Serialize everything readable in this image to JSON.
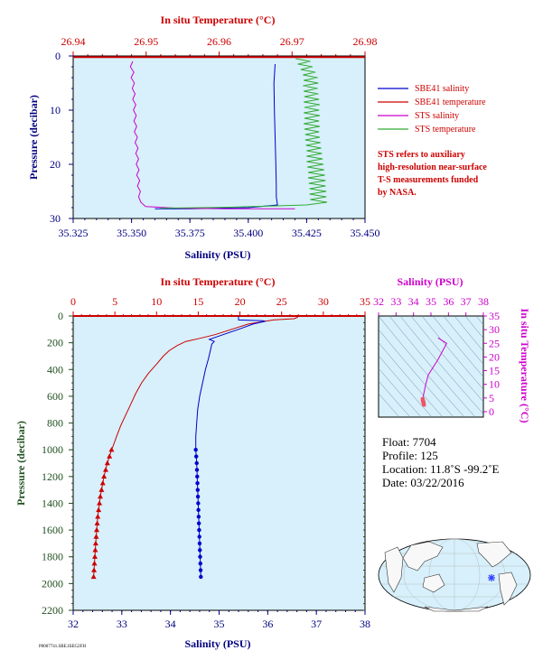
{
  "chart_data": [
    {
      "type": "line",
      "id": "top_profile",
      "x_top_label": "In situ Temperature (°C)",
      "x_top_ticks": [
        "26.94",
        "26.95",
        "26.96",
        "26.97",
        "26.98"
      ],
      "x_top_range": [
        26.94,
        26.98
      ],
      "x_bottom_label": "Salinity (PSU)",
      "x_bottom_ticks": [
        "35.325",
        "35.350",
        "35.375",
        "35.400",
        "35.425",
        "35.450"
      ],
      "x_bottom_range": [
        35.325,
        35.45
      ],
      "ylabel": "Pressure (decibar)",
      "y_ticks": [
        "0",
        "10",
        "20",
        "30"
      ],
      "ylim": [
        30,
        0
      ],
      "legend": [
        "SBE41 salinity",
        "SBE41 temperature",
        "STS salinity",
        "STS temperature"
      ],
      "legend_colors": [
        "#0000cc",
        "#cc0000",
        "#cc00cc",
        "#33aa33"
      ],
      "series": [
        {
          "name": "SBE41 salinity",
          "axis": "bottom",
          "color": "#0000cc",
          "points": [
            [
              35.4115,
              1.5
            ],
            [
              35.411,
              5
            ],
            [
              35.4112,
              10
            ],
            [
              35.4115,
              15
            ],
            [
              35.4118,
              20
            ],
            [
              35.412,
              24
            ],
            [
              35.412,
              26
            ],
            [
              35.4125,
              27.5
            ],
            [
              35.4,
              28
            ],
            [
              35.375,
              28.2
            ],
            [
              35.36,
              28.2
            ]
          ]
        },
        {
          "name": "SBE41 temperature",
          "axis": "top",
          "color": "#cc0000",
          "points": [
            [
              26.94,
              0.2
            ],
            [
              26.98,
              0.2
            ]
          ]
        },
        {
          "name": "STS salinity",
          "axis": "bottom",
          "color": "#cc00cc",
          "points": [
            [
              35.3505,
              1
            ],
            [
              35.3495,
              2
            ],
            [
              35.351,
              3
            ],
            [
              35.3498,
              4
            ],
            [
              35.3512,
              5
            ],
            [
              35.3503,
              6
            ],
            [
              35.3515,
              7
            ],
            [
              35.3505,
              8
            ],
            [
              35.3518,
              9
            ],
            [
              35.3508,
              10
            ],
            [
              35.352,
              11
            ],
            [
              35.351,
              12
            ],
            [
              35.3522,
              13
            ],
            [
              35.3512,
              14
            ],
            [
              35.3525,
              15
            ],
            [
              35.3515,
              16
            ],
            [
              35.3528,
              17
            ],
            [
              35.3518,
              18
            ],
            [
              35.353,
              19
            ],
            [
              35.352,
              20
            ],
            [
              35.3532,
              21
            ],
            [
              35.3522,
              22
            ],
            [
              35.3535,
              23
            ],
            [
              35.3525,
              24
            ],
            [
              35.3538,
              25
            ],
            [
              35.353,
              26
            ],
            [
              35.354,
              27
            ],
            [
              35.356,
              27.8
            ],
            [
              35.37,
              28.1
            ],
            [
              35.39,
              28.2
            ],
            [
              35.42,
              28.2
            ]
          ]
        },
        {
          "name": "STS temperature",
          "axis": "top",
          "color": "#33aa33",
          "points": [
            [
              26.9705,
              0.5
            ],
            [
              26.9725,
              1
            ],
            [
              26.9708,
              1.5
            ],
            [
              26.9728,
              2
            ],
            [
              26.9712,
              2.5
            ],
            [
              26.9732,
              3
            ],
            [
              26.9715,
              3.5
            ],
            [
              26.9735,
              4
            ],
            [
              26.9716,
              4.5
            ],
            [
              26.9736,
              5
            ],
            [
              26.9715,
              5.5
            ],
            [
              26.9735,
              6
            ],
            [
              26.9716,
              6.5
            ],
            [
              26.9736,
              7
            ],
            [
              26.9717,
              7.5
            ],
            [
              26.9737,
              8
            ],
            [
              26.9716,
              8.5
            ],
            [
              26.9738,
              9
            ],
            [
              26.9717,
              9.5
            ],
            [
              26.9737,
              10
            ],
            [
              26.9716,
              10.5
            ],
            [
              26.9738,
              11
            ],
            [
              26.9717,
              11.5
            ],
            [
              26.9737,
              12
            ],
            [
              26.9716,
              12.5
            ],
            [
              26.9738,
              13
            ],
            [
              26.9717,
              13.5
            ],
            [
              26.9737,
              14
            ],
            [
              26.9718,
              14.5
            ],
            [
              26.9738,
              15
            ],
            [
              26.9718,
              15.5
            ],
            [
              26.9739,
              16
            ],
            [
              26.9719,
              16.5
            ],
            [
              26.974,
              17
            ],
            [
              26.972,
              17.5
            ],
            [
              26.9741,
              18
            ],
            [
              26.972,
              18.5
            ],
            [
              26.9742,
              19
            ],
            [
              26.972,
              19.5
            ],
            [
              26.9743,
              20
            ],
            [
              26.9721,
              20.5
            ],
            [
              26.9744,
              21
            ],
            [
              26.9722,
              21.5
            ],
            [
              26.9745,
              22
            ],
            [
              26.9722,
              22.5
            ],
            [
              26.9746,
              23
            ],
            [
              26.9723,
              23.5
            ],
            [
              26.9746,
              24
            ],
            [
              26.9724,
              24.5
            ],
            [
              26.9747,
              25
            ],
            [
              26.9724,
              25.5
            ],
            [
              26.9747,
              26
            ],
            [
              26.9725,
              26.5
            ],
            [
              26.9748,
              27
            ],
            [
              26.972,
              27.5
            ],
            [
              26.962,
              27.9
            ],
            [
              26.952,
              28.1
            ]
          ]
        }
      ]
    },
    {
      "type": "line",
      "id": "bottom_profile",
      "x_top_label": "In situ Temperature (°C)",
      "x_top_ticks": [
        "0",
        "5",
        "10",
        "15",
        "20",
        "25",
        "30",
        "35"
      ],
      "x_top_range": [
        0,
        35
      ],
      "x_bottom_label": "Salinity (PSU)",
      "x_bottom_ticks": [
        "32",
        "33",
        "34",
        "35",
        "36",
        "37",
        "38"
      ],
      "x_bottom_range": [
        32,
        38
      ],
      "ylabel": "Pressure (decibar)",
      "y_ticks": [
        "0",
        "200",
        "400",
        "600",
        "800",
        "1000",
        "1200",
        "1400",
        "1600",
        "1800",
        "2000",
        "2200"
      ],
      "ylim": [
        2200,
        0
      ],
      "series": [
        {
          "name": "temperature",
          "axis": "top",
          "color": "#cc0000",
          "line_points": [
            [
              27.0,
              0
            ],
            [
              26.9,
              10
            ],
            [
              26.5,
              20
            ],
            [
              24,
              30
            ],
            [
              21,
              60
            ],
            [
              19,
              100
            ],
            [
              17,
              140
            ],
            [
              15,
              170
            ],
            [
              13.5,
              190
            ],
            [
              12.5,
              220
            ],
            [
              11.5,
              260
            ],
            [
              10.8,
              300
            ],
            [
              10,
              360
            ],
            [
              9,
              430
            ],
            [
              8.2,
              500
            ],
            [
              7.5,
              580
            ],
            [
              6.9,
              660
            ],
            [
              6.3,
              740
            ],
            [
              5.7,
              820
            ],
            [
              5.2,
              900
            ],
            [
              4.8,
              970
            ],
            [
              4.6,
              1000
            ]
          ],
          "markers": [
            [
              4.6,
              1000
            ],
            [
              4.35,
              1050
            ],
            [
              4.1,
              1100
            ],
            [
              3.9,
              1150
            ],
            [
              3.7,
              1200
            ],
            [
              3.55,
              1250
            ],
            [
              3.4,
              1300
            ],
            [
              3.25,
              1350
            ],
            [
              3.15,
              1400
            ],
            [
              3.05,
              1450
            ],
            [
              2.95,
              1500
            ],
            [
              2.88,
              1550
            ],
            [
              2.82,
              1600
            ],
            [
              2.76,
              1650
            ],
            [
              2.7,
              1700
            ],
            [
              2.65,
              1750
            ],
            [
              2.6,
              1800
            ],
            [
              2.55,
              1850
            ],
            [
              2.5,
              1900
            ],
            [
              2.45,
              1950
            ]
          ]
        },
        {
          "name": "salinity",
          "axis": "bottom",
          "color": "#0000cc",
          "line_points": [
            [
              35.4,
              0
            ],
            [
              35.4,
              10
            ],
            [
              35.4,
              30
            ],
            [
              35.9,
              35
            ],
            [
              35.95,
              40
            ],
            [
              35.7,
              60
            ],
            [
              35.4,
              100
            ],
            [
              35.0,
              150
            ],
            [
              34.8,
              175
            ],
            [
              34.9,
              190
            ],
            [
              34.85,
              210
            ],
            [
              34.82,
              260
            ],
            [
              34.78,
              320
            ],
            [
              34.72,
              400
            ],
            [
              34.66,
              500
            ],
            [
              34.6,
              600
            ],
            [
              34.56,
              700
            ],
            [
              34.54,
              800
            ],
            [
              34.52,
              900
            ],
            [
              34.52,
              1000
            ]
          ],
          "markers": [
            [
              34.52,
              1000
            ],
            [
              34.53,
              1050
            ],
            [
              34.54,
              1100
            ],
            [
              34.545,
              1150
            ],
            [
              34.55,
              1200
            ],
            [
              34.555,
              1250
            ],
            [
              34.56,
              1300
            ],
            [
              34.565,
              1350
            ],
            [
              34.57,
              1400
            ],
            [
              34.575,
              1450
            ],
            [
              34.58,
              1500
            ],
            [
              34.585,
              1550
            ],
            [
              34.59,
              1600
            ],
            [
              34.595,
              1650
            ],
            [
              34.6,
              1700
            ],
            [
              34.605,
              1750
            ],
            [
              34.61,
              1800
            ],
            [
              34.615,
              1850
            ],
            [
              34.62,
              1900
            ],
            [
              34.625,
              1950
            ]
          ]
        }
      ]
    },
    {
      "type": "scatter",
      "id": "ts_diagram",
      "x_top_label": "Salinity (PSU)",
      "x_top_ticks": [
        "32",
        "33",
        "34",
        "35",
        "36",
        "37",
        "38"
      ],
      "x_range": [
        32,
        38
      ],
      "y_right_label": "In situ Temperature (°C)",
      "y_right_ticks": [
        "0",
        "5",
        "10",
        "15",
        "20",
        "25",
        "30",
        "35"
      ],
      "y_range": [
        -2,
        35
      ],
      "color": "#cc00cc",
      "points": [
        [
          35.4,
          27
        ],
        [
          35.9,
          25
        ],
        [
          35.4,
          19
        ],
        [
          34.85,
          13.5
        ],
        [
          34.7,
          10
        ],
        [
          34.6,
          7
        ],
        [
          34.52,
          4.6
        ],
        [
          34.56,
          3.5
        ],
        [
          34.6,
          2.5
        ]
      ]
    }
  ],
  "legend_note": "STS refers to auxiliary high-resolution near-surface T-S measurements funded by NASA.",
  "legend_note_lines": [
    "STS refers to auxiliary",
    "high-resolution near-surface",
    "T-S measurements funded",
    "by NASA."
  ],
  "float_info": {
    "float": "Float:  7704",
    "profile": "Profile:  125",
    "location": "Location:  11.8˚S  -99.2˚E",
    "date": "Date:  03/22/2016"
  },
  "footer_code": "P0007741.SBE.ISEG2FH",
  "colors": {
    "plot_bg": "#d7f0fb",
    "temperature": "#cc0000",
    "salinity": "#0000cc",
    "sts_salinity": "#cc00cc",
    "sts_temperature": "#33aa33",
    "pressure_axis": "#205020",
    "ocean": "#d7f0fb",
    "land": "#f8f8f8",
    "float_marker": "#3344ff"
  }
}
